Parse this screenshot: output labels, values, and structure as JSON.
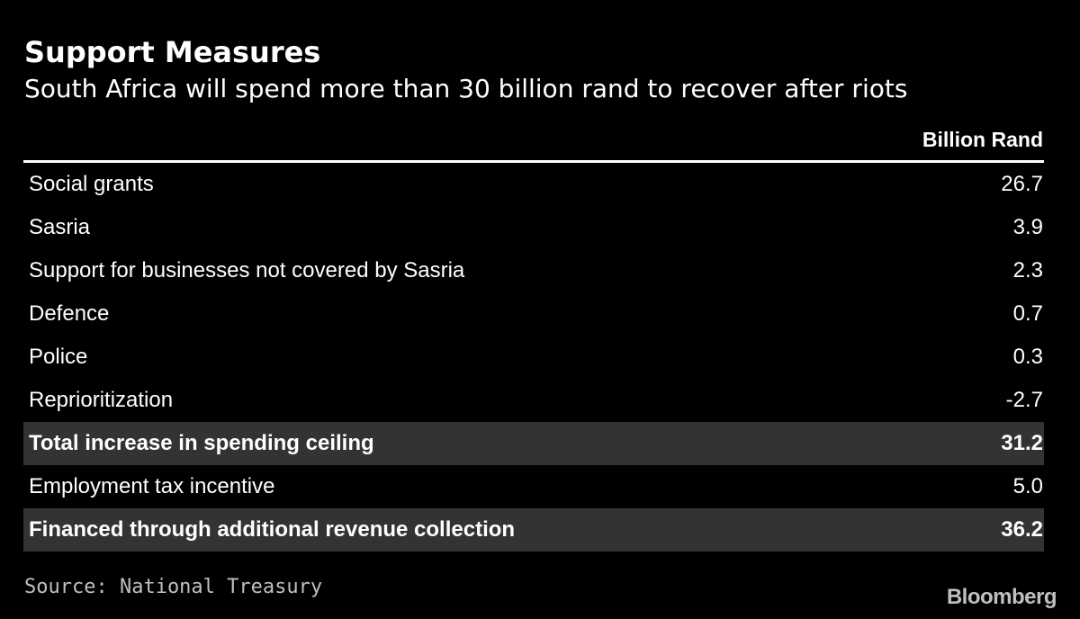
{
  "title": "Support Measures",
  "subtitle": "South Africa will spend more than 30 billion rand to recover after riots",
  "source": "Source: National Treasury",
  "brand": "Bloomberg",
  "colors": {
    "background": "#000000",
    "text": "#ffffff",
    "total_row_background": "#333333",
    "muted_text": "#bfbfbf"
  },
  "chart_data": {
    "type": "table",
    "title": "Support Measures",
    "subtitle": "South Africa will spend more than 30 billion rand to recover after riots",
    "columns": [
      "",
      "Billion Rand"
    ],
    "rows": [
      {
        "label": "Social grants",
        "value": "26.7",
        "emphasis": false
      },
      {
        "label": "Sasria",
        "value": "3.9",
        "emphasis": false
      },
      {
        "label": "Support for businesses not covered by Sasria",
        "value": "2.3",
        "emphasis": false
      },
      {
        "label": "Defence",
        "value": "0.7",
        "emphasis": false
      },
      {
        "label": "Police",
        "value": "0.3",
        "emphasis": false
      },
      {
        "label": "Reprioritization",
        "value": "-2.7",
        "emphasis": false
      },
      {
        "label": "Total increase in spending ceiling",
        "value": "31.2",
        "emphasis": true
      },
      {
        "label": "Employment tax incentive",
        "value": "5.0",
        "emphasis": false
      },
      {
        "label": "Financed through additional revenue collection",
        "value": "36.2",
        "emphasis": true
      }
    ]
  }
}
